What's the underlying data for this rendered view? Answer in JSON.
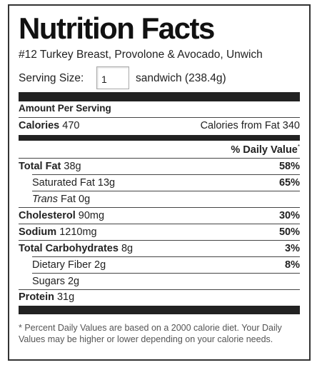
{
  "title": "Nutrition Facts",
  "product": "#12 Turkey Breast, Provolone & Avocado, Unwich",
  "serving": {
    "label": "Serving Size:",
    "value": "1",
    "unit": "sandwich (238.4g)"
  },
  "amount_per_serving": "Amount Per Serving",
  "calories": {
    "label": "Calories",
    "value": "470",
    "from_fat": "Calories from Fat 340"
  },
  "dv_header": "% Daily Value",
  "dv_star": "*",
  "nutrients": [
    {
      "label": "Total Fat",
      "amount": "38g",
      "dv": "58%"
    },
    {
      "label": "Saturated Fat",
      "amount": "13g",
      "dv": "65%"
    },
    {
      "label": "Trans",
      "amount": "Fat 0g",
      "dv": ""
    },
    {
      "label": "Cholesterol",
      "amount": "90mg",
      "dv": "30%"
    },
    {
      "label": "Sodium",
      "amount": "1210mg",
      "dv": "50%"
    },
    {
      "label": "Total Carbohydrates",
      "amount": "8g",
      "dv": "3%"
    },
    {
      "label": "Dietary Fiber",
      "amount": "2g",
      "dv": "8%"
    },
    {
      "label": "Sugars",
      "amount": "2g",
      "dv": ""
    },
    {
      "label": "Protein",
      "amount": "31g",
      "dv": ""
    }
  ],
  "footnote": "* Percent Daily Values are based on a 2000 calorie diet. Your Daily Values may be higher or lower depending on your calorie needs."
}
